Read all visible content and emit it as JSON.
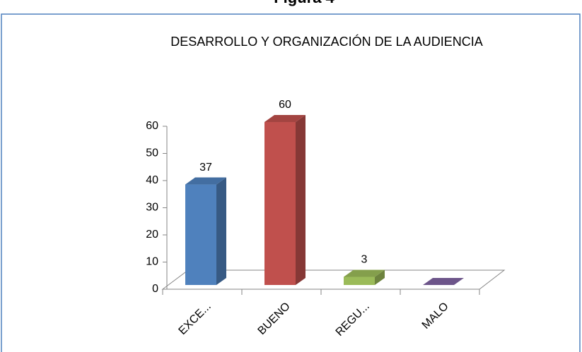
{
  "heading": "Figura 4",
  "chart_data": {
    "type": "bar3d",
    "title": "DESARROLLO Y ORGANIZACIÓN DE LA AUDIENCIA",
    "categories": [
      "EXCE...",
      "BUENO",
      "REGU...",
      "MALO"
    ],
    "values": [
      37,
      60,
      3,
      0
    ],
    "value_labels": [
      "37",
      "60",
      "3",
      null
    ],
    "colors": [
      "#4f81bd",
      "#c0504d",
      "#9bbb59",
      "#8064a2"
    ],
    "ylim": [
      0,
      60
    ],
    "yticks": [
      0,
      10,
      20,
      30,
      40,
      50,
      60
    ],
    "grid": false
  }
}
